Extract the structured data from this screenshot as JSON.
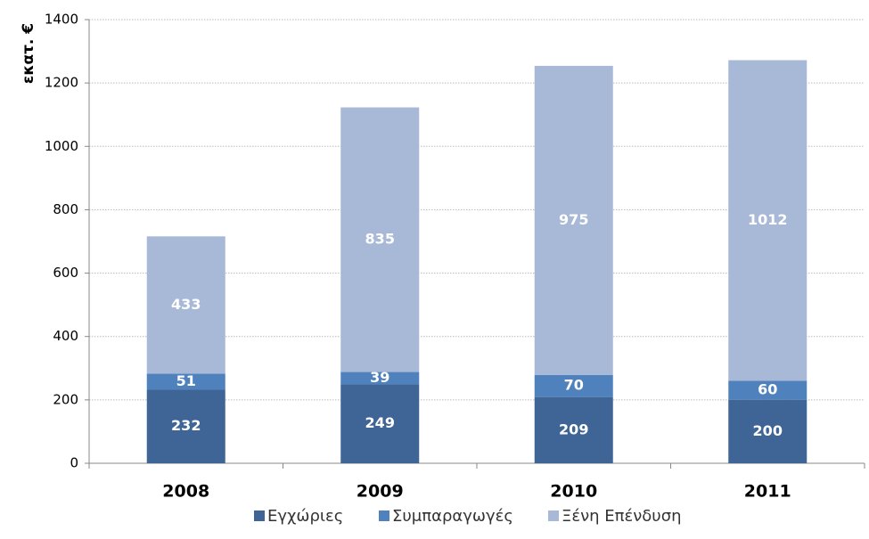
{
  "chart_data": {
    "type": "bar",
    "stacked": true,
    "y_label": "εκατ. €",
    "categories": [
      "2008",
      "2009",
      "2010",
      "2011"
    ],
    "series": [
      {
        "name": "Εγχώριες",
        "color": "#3f6496",
        "values": [
          232,
          249,
          209,
          200
        ]
      },
      {
        "name": "Συμπαραγωγές",
        "color": "#4f81bd",
        "values": [
          51,
          39,
          70,
          60
        ]
      },
      {
        "name": "Ξένη Επένδυση",
        "color": "#a8b9d8",
        "values": [
          433,
          835,
          975,
          1012
        ]
      }
    ],
    "ylim": [
      0,
      1400
    ],
    "yticks": [
      0,
      200,
      400,
      600,
      800,
      1000,
      1200,
      1400
    ],
    "grid": true
  }
}
